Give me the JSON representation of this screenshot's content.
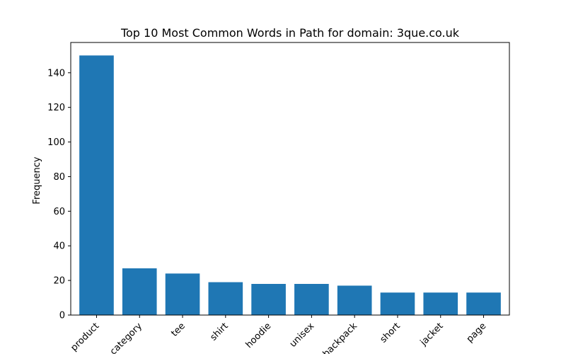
{
  "chart_data": {
    "type": "bar",
    "title": "Top 10 Most Common Words in Path for domain: 3que.co.uk",
    "xlabel": "",
    "ylabel": "Frequency",
    "categories": [
      "product",
      "category",
      "tee",
      "shirt",
      "hoodie",
      "unisex",
      "backpack",
      "short",
      "jacket",
      "page"
    ],
    "values": [
      150,
      27,
      24,
      19,
      18,
      18,
      17,
      13,
      13,
      13
    ],
    "ylim": [
      0,
      157.5
    ],
    "yticks": [
      0,
      20,
      40,
      60,
      80,
      100,
      120,
      140
    ],
    "bar_color": "#1f77b4",
    "grid": false,
    "legend": "none",
    "x_tick_rotation_deg": 45
  }
}
